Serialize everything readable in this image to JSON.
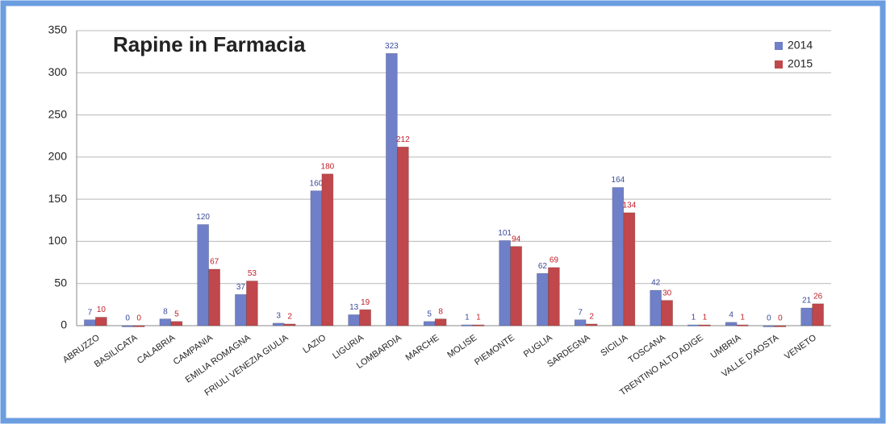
{
  "chart_data": {
    "type": "bar",
    "title": "Rapine in Farmacia",
    "categories": [
      "ABRUZZO",
      "BASILICATA",
      "CALABRIA",
      "CAMPANIA",
      "EMILIA ROMAGNA",
      "FRIULI VENEZIA GIULIA",
      "LAZIO",
      "LIGURIA",
      "LOMBARDIA",
      "MARCHE",
      "MOLISE",
      "PIEMONTE",
      "PUGLIA",
      "SARDEGNA",
      "SICILIA",
      "TOSCANA",
      "TRENTINO ALTO ADIGE",
      "UMBRIA",
      "VALLE D'AOSTA",
      "VENETO"
    ],
    "series": [
      {
        "name": "2014",
        "color": "#6f7fc8",
        "values": [
          7,
          0,
          8,
          120,
          37,
          3,
          160,
          13,
          323,
          5,
          1,
          101,
          62,
          7,
          164,
          42,
          1,
          4,
          0,
          21
        ]
      },
      {
        "name": "2015",
        "color": "#c0474b",
        "values": [
          10,
          0,
          5,
          67,
          53,
          2,
          180,
          19,
          212,
          8,
          1,
          94,
          69,
          2,
          134,
          30,
          1,
          1,
          0,
          26
        ]
      }
    ],
    "ylim": [
      0,
      350
    ],
    "yticks": [
      0,
      50,
      100,
      150,
      200,
      250,
      300,
      350
    ],
    "grid": true,
    "legend": "top-right"
  }
}
